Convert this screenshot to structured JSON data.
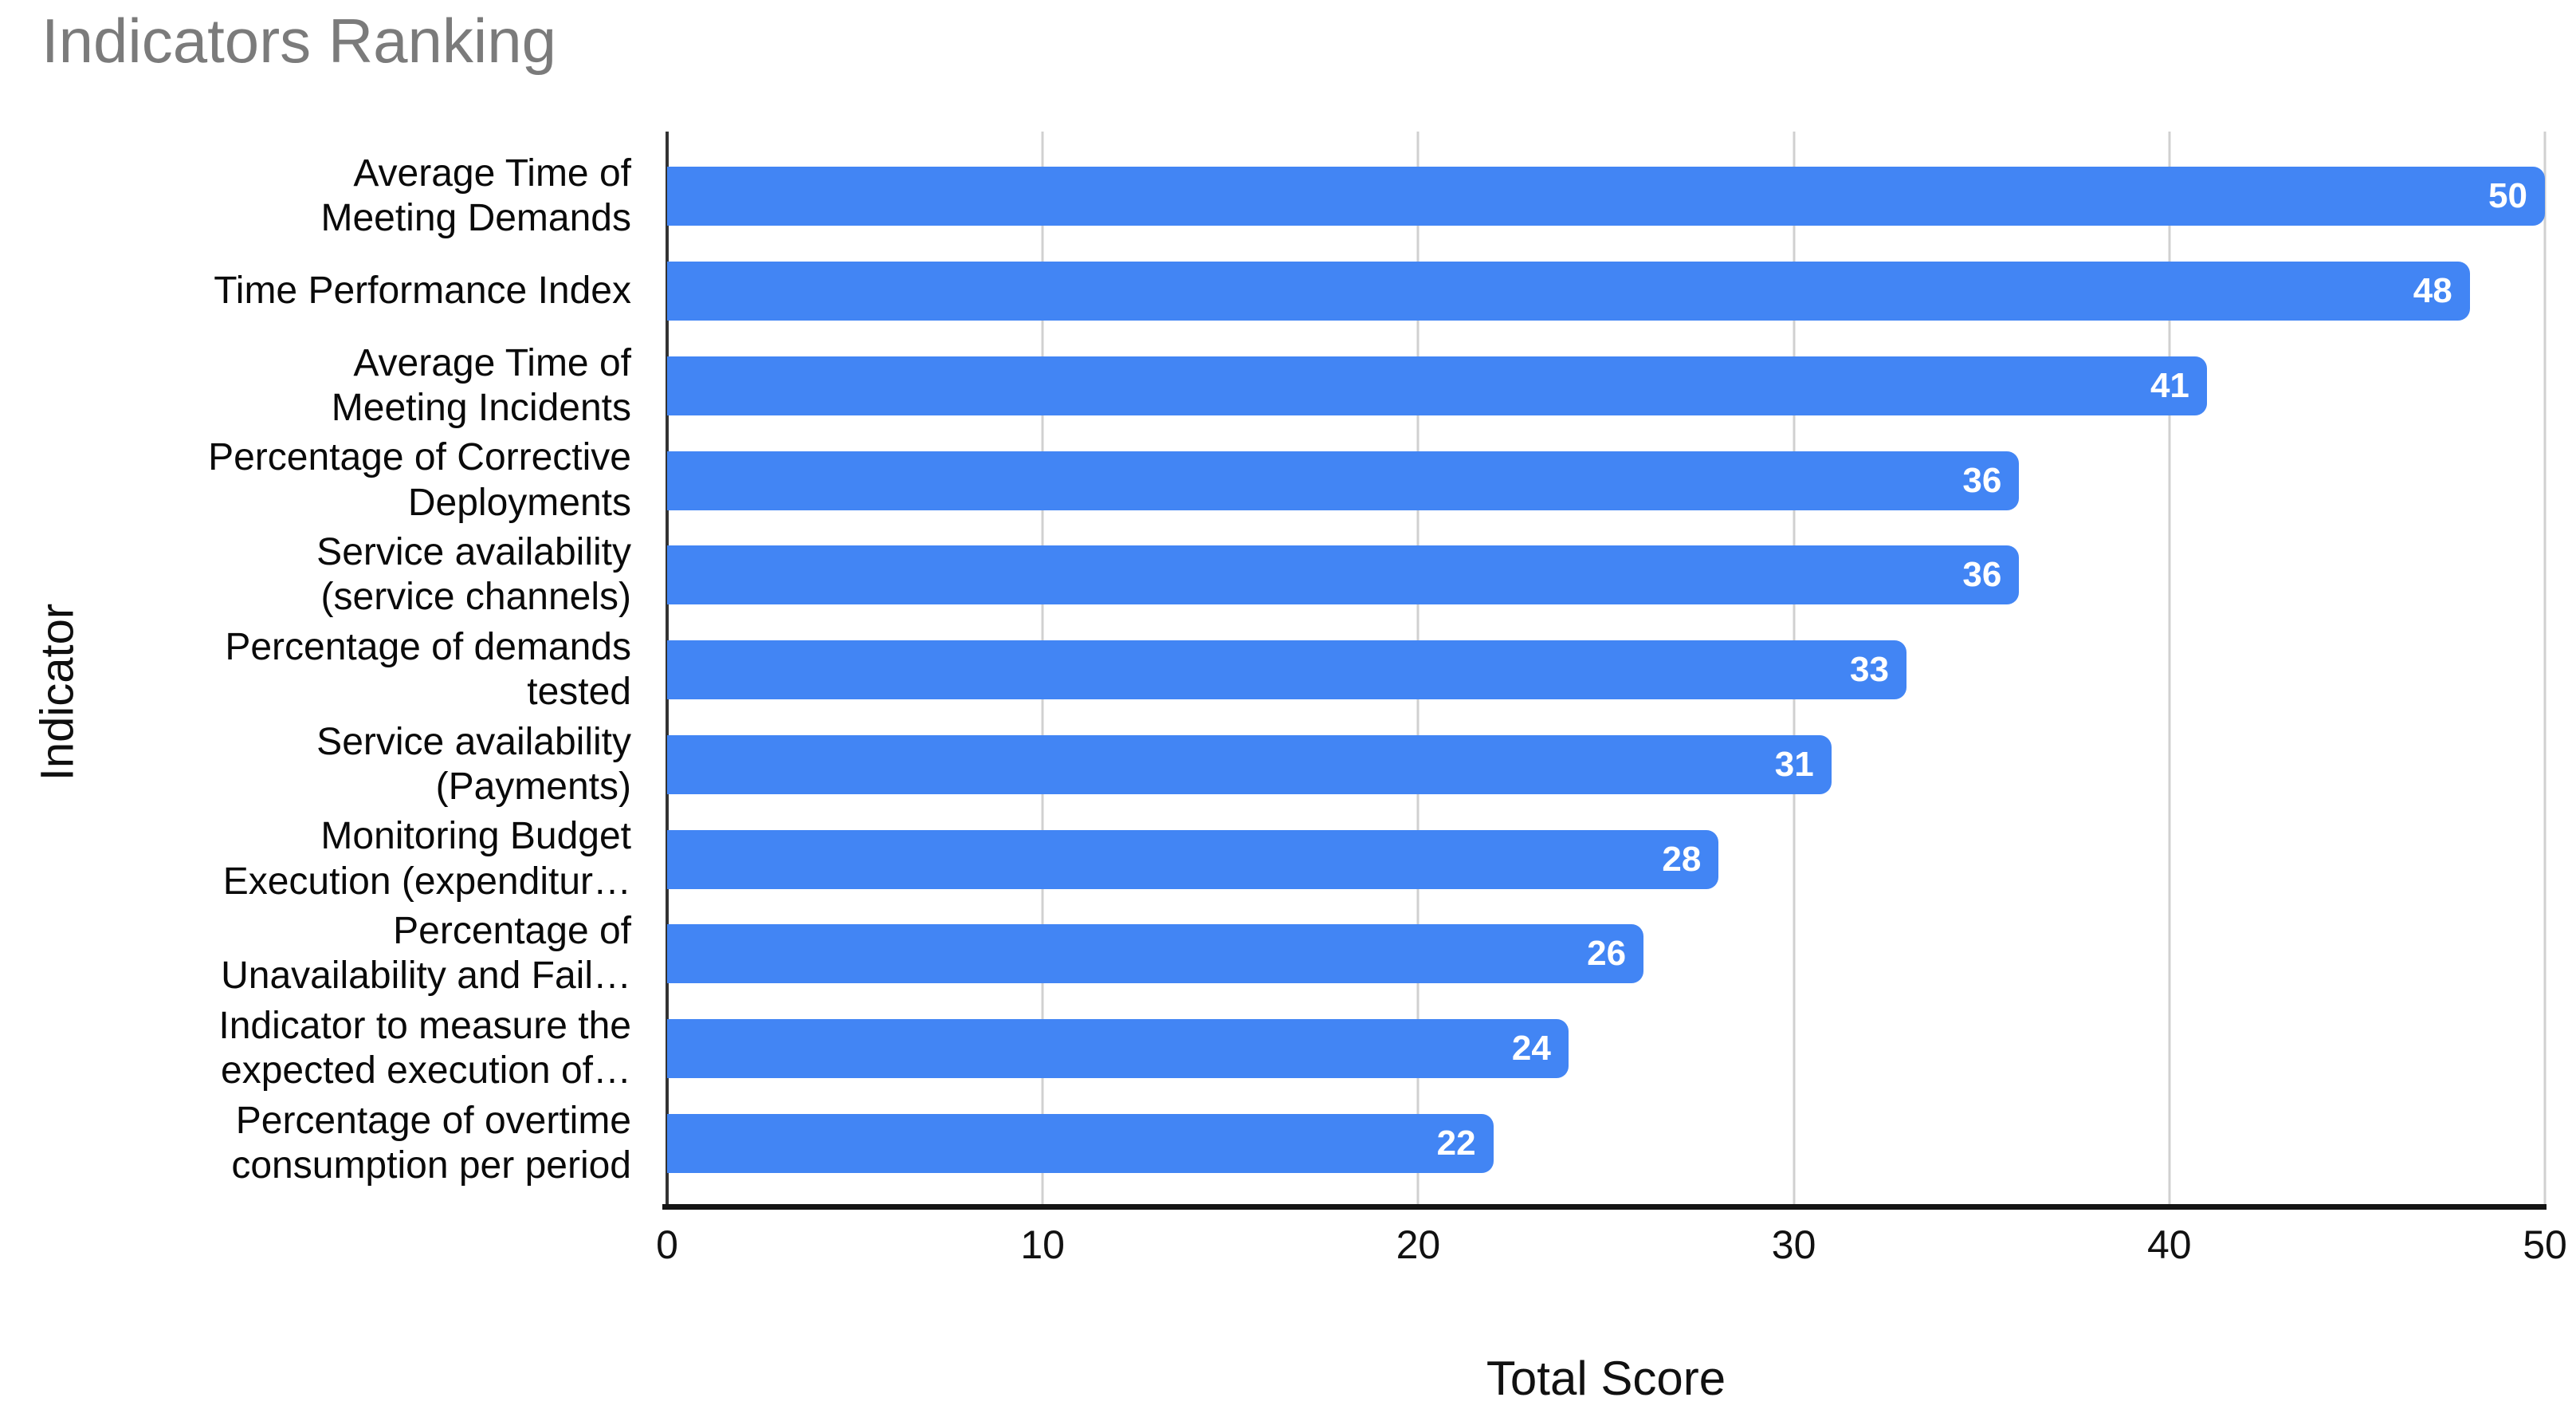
{
  "chart_data": {
    "type": "bar",
    "orientation": "horizontal",
    "title": "Indicators Ranking",
    "xlabel": "Total Score",
    "ylabel": "Indicator",
    "xlim": [
      0,
      50
    ],
    "x_ticks": [
      0,
      10,
      20,
      30,
      40,
      50
    ],
    "grid": true,
    "legend": "none",
    "bar_color": "#4285F4",
    "value_label_color": "#ffffff",
    "categories": [
      "Average Time of Meeting Demands",
      "Time Performance Index",
      "Average Time of Meeting Incidents",
      "Percentage of Corrective Deployments",
      "Service availability (service channels)",
      "Percentage of demands tested",
      "Service availability (Payments)",
      "Monitoring Budget Execution (expenditur…",
      "Percentage of Unavailability and Fail…",
      "Indicator to measure the expected execution of…",
      "Percentage of overtime consumption per period"
    ],
    "category_display_lines": [
      [
        "Average Time of",
        "Meeting Demands"
      ],
      [
        "Time Performance Index"
      ],
      [
        "Average Time of",
        "Meeting Incidents"
      ],
      [
        "Percentage of Corrective",
        "Deployments"
      ],
      [
        "Service availability",
        "(service channels)"
      ],
      [
        "Percentage of demands",
        "tested"
      ],
      [
        "Service availability",
        "(Payments)"
      ],
      [
        "Monitoring Budget",
        "Execution (expenditur…"
      ],
      [
        "Percentage of",
        "Unavailability and Fail…"
      ],
      [
        "Indicator to measure the",
        "expected execution of…"
      ],
      [
        "Percentage of overtime",
        "consumption per period"
      ]
    ],
    "values": [
      50,
      48,
      41,
      36,
      36,
      33,
      31,
      28,
      26,
      24,
      22
    ]
  },
  "colors": {
    "background": "#ffffff",
    "bar": "#4285F4",
    "value_label": "#ffffff",
    "gridline": "#d0d0d0",
    "y_axis_line": "#333333",
    "x_axis_line": "#141414",
    "title_text": "#7b7b7b",
    "axis_text": "#111111"
  }
}
